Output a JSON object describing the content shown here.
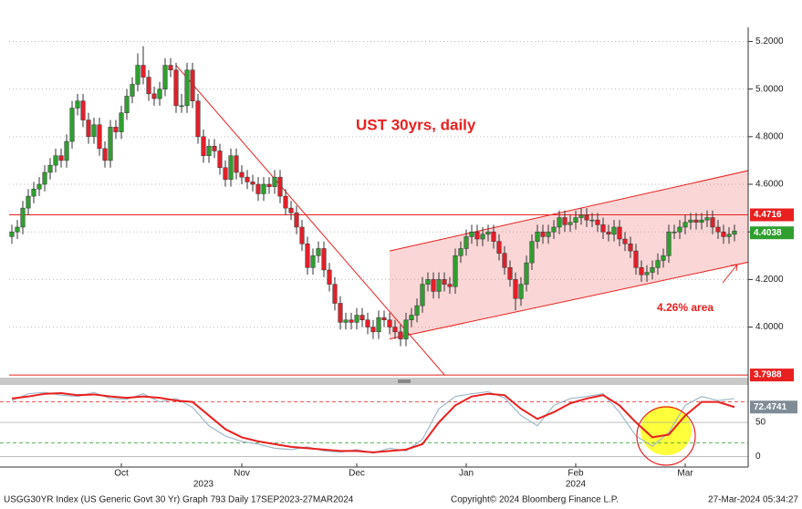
{
  "chart_data": {
    "type": "candlestick",
    "title": "UST 30yrs, daily",
    "annotation": "4.26% area",
    "footer_left": "USGG30YR Index (US Generic Govt 30 Yr) Graph 793  Daily 17SEP2023-27MAR2024",
    "footer_center": "Copyright© 2024 Bloomberg Finance L.P.",
    "footer_right": "27-Mar-2024 05:34:27",
    "up_color": "#2f9e2f",
    "down_color": "#e0202a",
    "grid": true,
    "ylim": [
      3.78,
      5.24
    ],
    "yticks": [
      {
        "value": 4.0,
        "label": "4.0000"
      },
      {
        "value": 4.2,
        "label": "4.2000"
      },
      {
        "value": 4.4,
        "label": "4.4000"
      },
      {
        "value": 4.6,
        "label": "4.6000"
      },
      {
        "value": 4.8,
        "label": "4.8000"
      },
      {
        "value": 5.0,
        "label": "5.0000"
      },
      {
        "value": 5.2,
        "label": "5.2000"
      }
    ],
    "xticks": [
      {
        "value": 20,
        "label": "Oct"
      },
      {
        "value": 42,
        "label": "Nov"
      },
      {
        "value": 63,
        "label": "Dec"
      },
      {
        "value": 83,
        "label": "Jan"
      },
      {
        "value": 103,
        "label": "Feb"
      },
      {
        "value": 123,
        "label": "Mar"
      }
    ],
    "years": [
      {
        "value": 35,
        "label": "2023"
      },
      {
        "value": 103,
        "label": "2024"
      }
    ],
    "open": [
      4.38,
      4.4,
      4.42,
      4.5,
      4.55,
      4.58,
      4.6,
      4.65,
      4.68,
      4.72,
      4.7,
      4.78,
      4.92,
      4.95,
      4.87,
      4.8,
      4.85,
      4.75,
      4.7,
      4.84,
      4.82,
      4.9,
      4.97,
      5.02,
      5.1,
      5.05,
      4.98,
      4.96,
      5.0,
      5.1,
      5.08,
      4.93,
      4.93,
      5.08,
      4.95,
      4.8,
      4.72,
      4.76,
      4.74,
      4.67,
      4.62,
      4.72,
      4.65,
      4.63,
      4.61,
      4.6,
      4.56,
      4.6,
      4.59,
      4.63,
      4.55,
      4.5,
      4.48,
      4.42,
      4.35,
      4.25,
      4.3,
      4.33,
      4.24,
      4.18,
      4.1,
      4.02,
      4.03,
      4.02,
      4.05,
      4.03,
      4.0,
      3.98,
      4.04,
      4.03,
      4.0,
      3.98,
      3.95,
      4.03,
      4.05,
      4.09,
      4.18,
      4.2,
      4.15,
      4.2,
      4.18,
      4.17,
      4.3,
      4.33,
      4.38,
      4.4,
      4.37,
      4.39,
      4.4,
      4.36,
      4.31,
      4.25,
      4.2,
      4.12,
      4.18,
      4.27,
      4.36,
      4.4,
      4.38,
      4.4,
      4.42,
      4.46,
      4.43,
      4.44,
      4.46,
      4.47,
      4.45,
      4.45,
      4.43,
      4.4,
      4.39,
      4.42,
      4.37,
      4.35,
      4.32,
      4.25,
      4.22,
      4.23,
      4.25,
      4.28,
      4.3,
      4.4,
      4.4,
      4.42,
      4.44,
      4.45,
      4.44,
      4.45,
      4.46,
      4.42,
      4.4,
      4.38,
      4.39
    ],
    "high": [
      4.43,
      4.45,
      4.53,
      4.58,
      4.61,
      4.63,
      4.68,
      4.71,
      4.75,
      4.75,
      4.81,
      4.95,
      4.98,
      4.98,
      4.9,
      4.88,
      4.88,
      4.78,
      4.87,
      4.87,
      4.93,
      5.0,
      5.05,
      5.15,
      5.18,
      5.08,
      5.01,
      5.03,
      5.13,
      5.13,
      5.11,
      4.98,
      5.11,
      5.11,
      4.98,
      4.83,
      4.79,
      4.79,
      4.77,
      4.7,
      4.75,
      4.75,
      4.68,
      4.66,
      4.64,
      4.63,
      4.63,
      4.63,
      4.66,
      4.66,
      4.58,
      4.53,
      4.51,
      4.45,
      4.38,
      4.33,
      4.36,
      4.36,
      4.27,
      4.21,
      4.13,
      4.06,
      4.06,
      4.08,
      4.08,
      4.06,
      4.03,
      4.07,
      4.07,
      4.06,
      4.03,
      4.01,
      4.06,
      4.08,
      4.12,
      4.21,
      4.23,
      4.23,
      4.23,
      4.23,
      4.21,
      4.33,
      4.36,
      4.41,
      4.43,
      4.43,
      4.42,
      4.43,
      4.43,
      4.39,
      4.34,
      4.28,
      4.23,
      4.21,
      4.3,
      4.39,
      4.43,
      4.43,
      4.43,
      4.45,
      4.49,
      4.49,
      4.47,
      4.49,
      4.5,
      4.5,
      4.48,
      4.48,
      4.46,
      4.43,
      4.45,
      4.45,
      4.4,
      4.38,
      4.35,
      4.28,
      4.26,
      4.28,
      4.31,
      4.33,
      4.43,
      4.43,
      4.45,
      4.47,
      4.48,
      4.48,
      4.48,
      4.49,
      4.49,
      4.45,
      4.43,
      4.42,
      4.43
    ],
    "low": [
      4.35,
      4.37,
      4.39,
      4.47,
      4.52,
      4.55,
      4.57,
      4.62,
      4.65,
      4.67,
      4.67,
      4.75,
      4.89,
      4.84,
      4.77,
      4.77,
      4.72,
      4.67,
      4.67,
      4.79,
      4.79,
      4.87,
      4.94,
      4.99,
      5.02,
      4.95,
      4.93,
      4.93,
      4.97,
      5.05,
      4.9,
      4.9,
      4.9,
      4.92,
      4.77,
      4.69,
      4.69,
      4.71,
      4.64,
      4.59,
      4.59,
      4.62,
      4.6,
      4.58,
      4.57,
      4.53,
      4.53,
      4.56,
      4.56,
      4.52,
      4.47,
      4.45,
      4.39,
      4.32,
      4.22,
      4.22,
      4.27,
      4.21,
      4.15,
      4.07,
      3.99,
      3.99,
      3.99,
      3.99,
      4.0,
      3.97,
      3.95,
      3.95,
      4.0,
      3.97,
      3.95,
      3.92,
      3.92,
      4.0,
      4.02,
      4.06,
      4.15,
      4.12,
      4.12,
      4.15,
      4.14,
      4.14,
      4.27,
      4.3,
      4.35,
      4.34,
      4.34,
      4.36,
      4.33,
      4.28,
      4.22,
      4.17,
      4.07,
      4.09,
      4.15,
      4.24,
      4.33,
      4.35,
      4.35,
      4.37,
      4.39,
      4.4,
      4.4,
      4.41,
      4.43,
      4.42,
      4.42,
      4.4,
      4.37,
      4.36,
      4.36,
      4.34,
      4.32,
      4.29,
      4.22,
      4.19,
      4.19,
      4.2,
      4.22,
      4.25,
      4.27,
      4.37,
      4.37,
      4.39,
      4.41,
      4.41,
      4.41,
      4.42,
      4.39,
      4.37,
      4.35,
      4.35,
      4.36
    ],
    "close": [
      4.4,
      4.42,
      4.5,
      4.55,
      4.58,
      4.6,
      4.65,
      4.68,
      4.72,
      4.7,
      4.78,
      4.92,
      4.95,
      4.87,
      4.8,
      4.85,
      4.75,
      4.7,
      4.84,
      4.82,
      4.9,
      4.97,
      5.02,
      5.1,
      5.05,
      4.98,
      4.96,
      5.0,
      5.1,
      5.08,
      4.93,
      4.93,
      5.08,
      4.95,
      4.8,
      4.72,
      4.76,
      4.74,
      4.67,
      4.62,
      4.72,
      4.65,
      4.63,
      4.61,
      4.6,
      4.56,
      4.6,
      4.59,
      4.63,
      4.55,
      4.5,
      4.48,
      4.42,
      4.35,
      4.25,
      4.3,
      4.33,
      4.24,
      4.18,
      4.1,
      4.02,
      4.03,
      4.02,
      4.05,
      4.03,
      4.0,
      3.98,
      4.04,
      4.03,
      4.0,
      3.98,
      3.95,
      4.03,
      4.05,
      4.09,
      4.18,
      4.2,
      4.15,
      4.2,
      4.18,
      4.17,
      4.3,
      4.33,
      4.38,
      4.4,
      4.37,
      4.39,
      4.4,
      4.36,
      4.31,
      4.25,
      4.2,
      4.12,
      4.18,
      4.27,
      4.36,
      4.4,
      4.38,
      4.4,
      4.42,
      4.46,
      4.43,
      4.44,
      4.46,
      4.47,
      4.45,
      4.45,
      4.43,
      4.4,
      4.39,
      4.42,
      4.37,
      4.35,
      4.32,
      4.25,
      4.22,
      4.23,
      4.25,
      4.28,
      4.3,
      4.4,
      4.4,
      4.42,
      4.44,
      4.45,
      4.44,
      4.45,
      4.46,
      4.42,
      4.4,
      4.38,
      4.39,
      4.4038
    ],
    "levels": {
      "resistance": 4.4716,
      "last": 4.4038,
      "low_line": 3.7988
    },
    "channel": {
      "x": [
        69,
        136
      ],
      "lower": [
        3.95,
        4.28
      ],
      "upper": [
        4.32,
        4.665
      ]
    },
    "trendline": {
      "x": [
        30,
        79
      ],
      "y": [
        5.1,
        3.8
      ]
    },
    "oscillator": {
      "ylim": [
        -13,
        105
      ],
      "yticks": [
        0,
        50
      ],
      "bands": [
        20,
        80
      ],
      "x": [
        0,
        3,
        6,
        9,
        12,
        15,
        18,
        21,
        24,
        27,
        30,
        33,
        36,
        39,
        42,
        45,
        48,
        51,
        54,
        57,
        60,
        63,
        66,
        69,
        72,
        75,
        78,
        81,
        84,
        87,
        90,
        93,
        96,
        99,
        102,
        105,
        108,
        111,
        114,
        117,
        120,
        123,
        126,
        129,
        132
      ],
      "series": [
        {
          "color": "#e8201f",
          "values": [
            85,
            88,
            92,
            93,
            90,
            91,
            88,
            86,
            88,
            86,
            82,
            80,
            60,
            40,
            28,
            22,
            18,
            14,
            12,
            10,
            8,
            8,
            6,
            8,
            10,
            18,
            50,
            75,
            88,
            92,
            90,
            70,
            55,
            65,
            78,
            85,
            90,
            75,
            50,
            28,
            32,
            60,
            80,
            80,
            72.4741
          ]
        },
        {
          "color": "#9fb8c8",
          "values": [
            82,
            92,
            94,
            90,
            88,
            94,
            85,
            84,
            92,
            80,
            85,
            72,
            45,
            30,
            22,
            18,
            12,
            10,
            14,
            8,
            6,
            10,
            5,
            12,
            8,
            25,
            70,
            88,
            92,
            95,
            86,
            60,
            45,
            75,
            85,
            88,
            92,
            65,
            30,
            15,
            35,
            75,
            88,
            82,
            85
          ]
        }
      ]
    }
  }
}
